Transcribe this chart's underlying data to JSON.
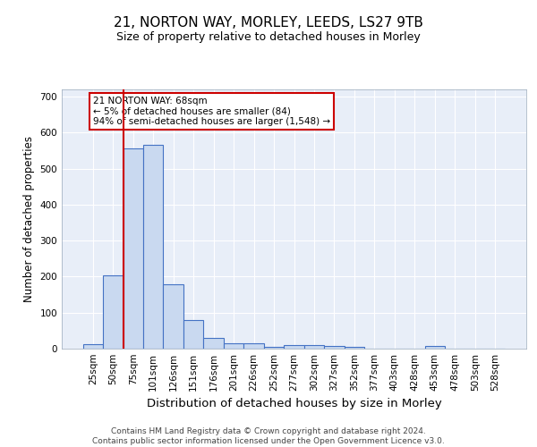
{
  "title1": "21, NORTON WAY, MORLEY, LEEDS, LS27 9TB",
  "title2": "Size of property relative to detached houses in Morley",
  "xlabel": "Distribution of detached houses by size in Morley",
  "ylabel": "Number of detached properties",
  "categories": [
    "25sqm",
    "50sqm",
    "75sqm",
    "101sqm",
    "126sqm",
    "151sqm",
    "176sqm",
    "201sqm",
    "226sqm",
    "252sqm",
    "277sqm",
    "302sqm",
    "327sqm",
    "352sqm",
    "377sqm",
    "403sqm",
    "428sqm",
    "453sqm",
    "478sqm",
    "503sqm",
    "528sqm"
  ],
  "values": [
    12,
    204,
    555,
    565,
    180,
    80,
    30,
    15,
    14,
    6,
    10,
    10,
    8,
    4,
    0,
    0,
    0,
    7,
    0,
    0,
    0
  ],
  "bar_color": "#c9d9f0",
  "bar_edge_color": "#4472c4",
  "vline_color": "#cc0000",
  "annotation_text": "21 NORTON WAY: 68sqm\n← 5% of detached houses are smaller (84)\n94% of semi-detached houses are larger (1,548) →",
  "annotation_box_color": "#ffffff",
  "annotation_box_edge_color": "#cc0000",
  "footer_text": "Contains HM Land Registry data © Crown copyright and database right 2024.\nContains public sector information licensed under the Open Government Licence v3.0.",
  "ylim": [
    0,
    720
  ],
  "yticks": [
    0,
    100,
    200,
    300,
    400,
    500,
    600,
    700
  ],
  "bg_color": "#e8eef8",
  "grid_color": "#ffffff",
  "title1_fontsize": 11,
  "title2_fontsize": 9,
  "xlabel_fontsize": 9.5,
  "ylabel_fontsize": 8.5,
  "tick_fontsize": 7.5,
  "footer_fontsize": 6.5
}
